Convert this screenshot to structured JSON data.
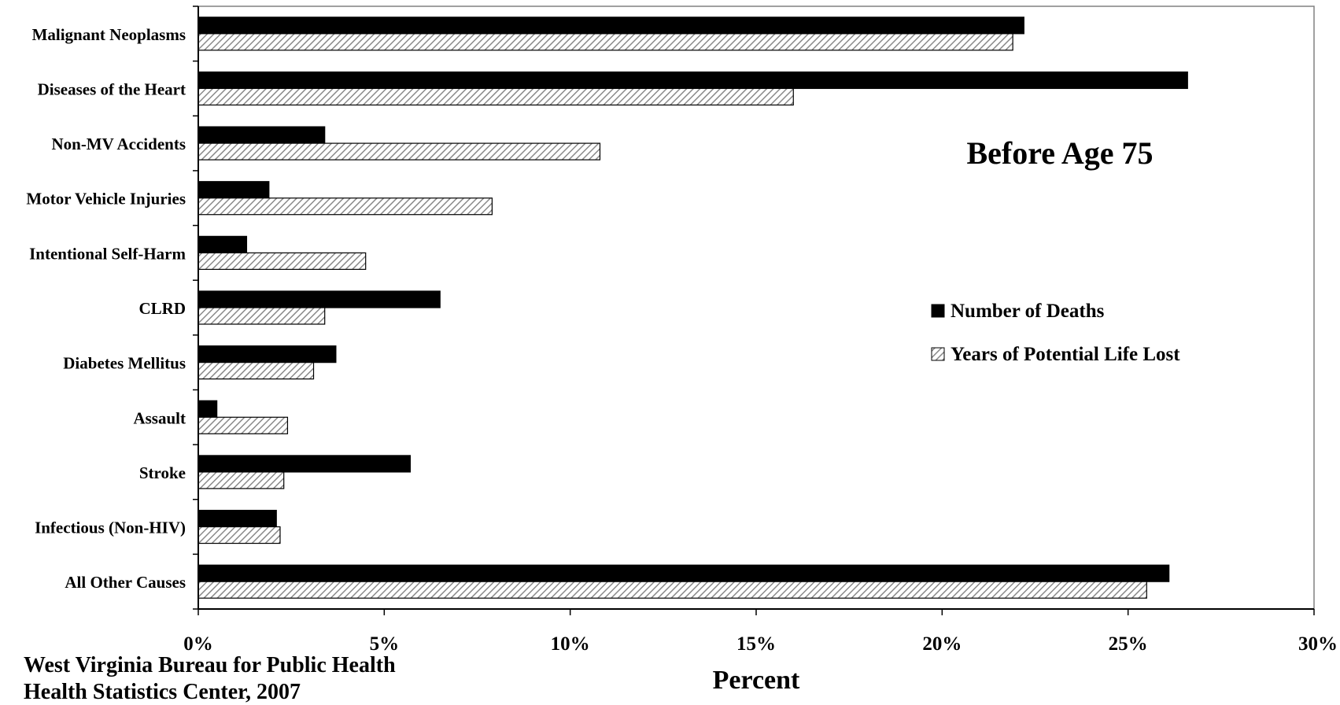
{
  "chart_data": {
    "type": "bar",
    "orientation": "horizontal",
    "annotation": "Before Age 75",
    "xlabel": "Percent",
    "ylabel": "",
    "xlim": [
      0,
      30
    ],
    "x_ticks": [
      "0%",
      "5%",
      "10%",
      "15%",
      "20%",
      "25%",
      "30%"
    ],
    "categories": [
      "Malignant Neoplasms",
      "Diseases of the Heart",
      "Non-MV Accidents",
      "Motor Vehicle Injuries",
      "Intentional Self-Harm",
      "CLRD",
      "Diabetes Mellitus",
      "Assault",
      "Stroke",
      "Infectious (Non-HIV)",
      "All Other Causes"
    ],
    "series": [
      {
        "name": "Number of Deaths",
        "style": "solid",
        "color": "#000000",
        "values": [
          22.2,
          26.6,
          3.4,
          1.9,
          1.3,
          6.5,
          3.7,
          0.5,
          5.7,
          2.1,
          26.1
        ]
      },
      {
        "name": "Years of Potential Life Lost",
        "style": "hatched",
        "color": "#d9d9d9",
        "values": [
          21.9,
          16.0,
          10.8,
          7.9,
          4.5,
          3.4,
          3.1,
          2.4,
          2.3,
          2.2,
          25.5
        ]
      }
    ],
    "legend_position": "right"
  },
  "source": {
    "line1": "West Virginia Bureau for Public Health",
    "line2": "Health Statistics Center, 2007"
  }
}
